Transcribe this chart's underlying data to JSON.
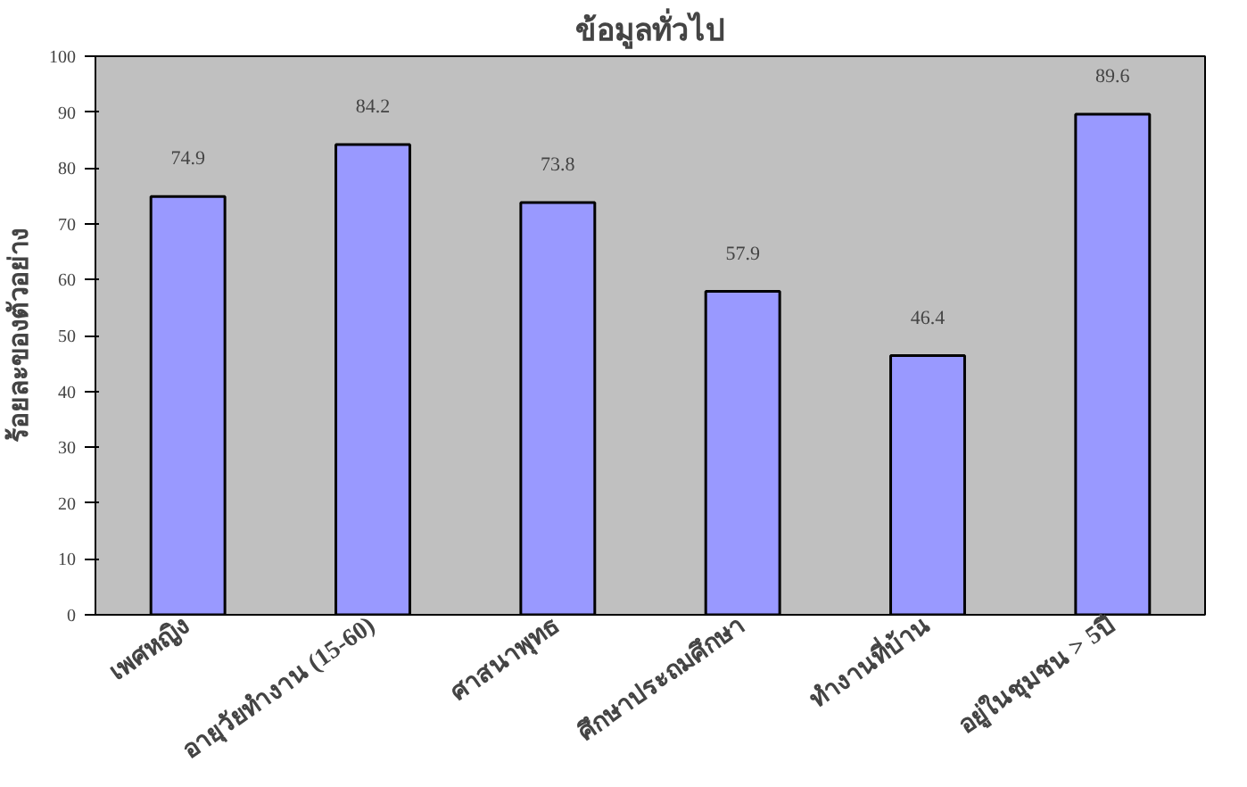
{
  "chart_data": {
    "type": "bar",
    "title": "ข้อมูลทั่วไป",
    "ylabel": "ร้อยละของตัวอย่าง",
    "categories": [
      "เพศหญิง",
      "อายุวัยทำงาน (15-60)",
      "ศาสนาพุทธ",
      "ศึกษาประถมศึกษา",
      "ทำงานที่บ้าน",
      "อยู่ในชุมชน > 5ปี"
    ],
    "values": [
      74.9,
      84.2,
      73.8,
      57.9,
      46.4,
      89.6
    ],
    "color": "#9999ff",
    "ylim": [
      0,
      100
    ],
    "yticks": [
      0,
      10,
      20,
      30,
      40,
      50,
      60,
      70,
      80,
      90,
      100
    ],
    "data_labels": true
  }
}
